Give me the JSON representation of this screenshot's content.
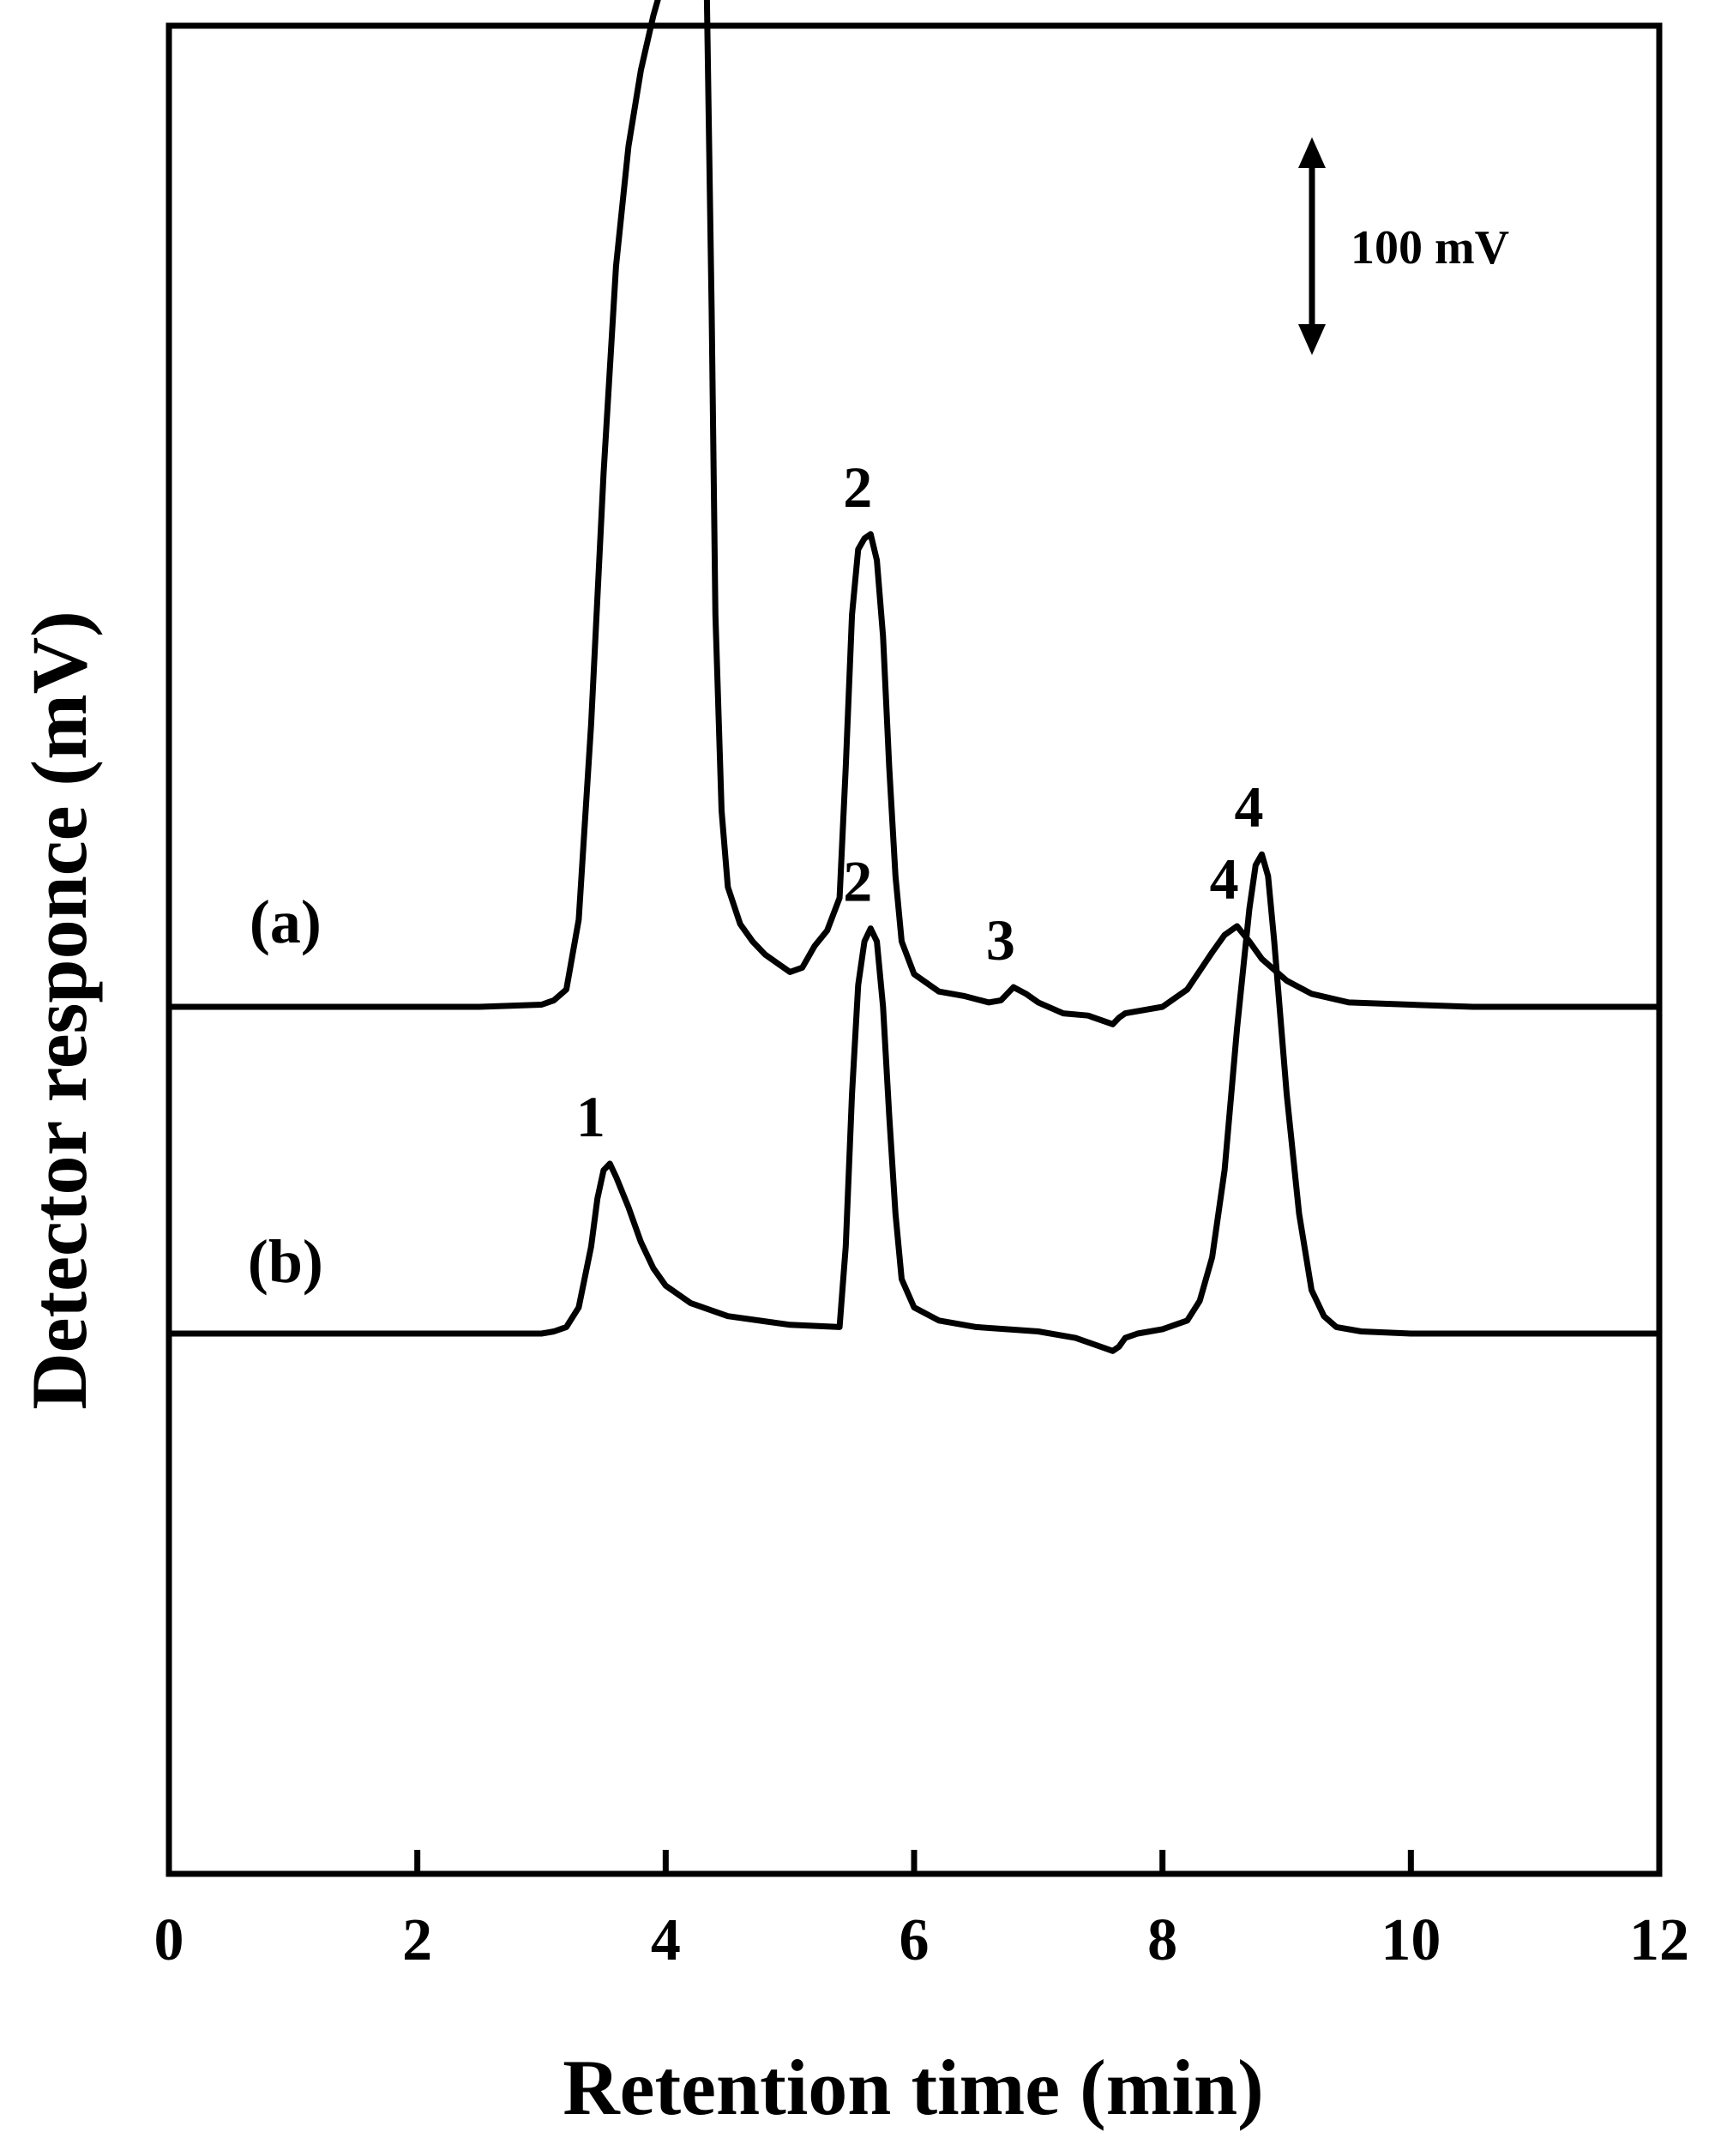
{
  "chart_data": {
    "type": "line",
    "xlabel": "Retention time (min)",
    "ylabel": "Detector responce (mV)",
    "xlim": [
      0,
      12
    ],
    "x_ticks": [
      "0",
      "2",
      "4",
      "6",
      "8",
      "10",
      "12"
    ],
    "y_ticks_shown": false,
    "grid": false,
    "scale_bar": {
      "label": "100 mV",
      "value_mV": 100
    },
    "series": [
      {
        "name": "(a)",
        "baseline_mV": 150,
        "color": "#000000",
        "peaks": [
          {
            "label": "1",
            "x": 4.3,
            "y": 680
          },
          {
            "label": "2",
            "x": 5.65,
            "y": 367
          },
          {
            "label": "3",
            "x": 6.8,
            "y": 159
          },
          {
            "label": "4",
            "x": 8.6,
            "y": 187
          }
        ],
        "x": [
          0.0,
          0.2,
          0.5,
          1.0,
          1.5,
          2.0,
          2.5,
          3.0,
          3.1,
          3.2,
          3.3,
          3.4,
          3.5,
          3.6,
          3.7,
          3.8,
          3.9,
          4.0,
          4.05,
          4.1,
          4.15,
          4.2,
          4.25,
          4.3,
          4.33,
          4.37,
          4.4,
          4.45,
          4.5,
          4.6,
          4.7,
          4.8,
          4.9,
          5.0,
          5.1,
          5.2,
          5.3,
          5.4,
          5.45,
          5.5,
          5.55,
          5.6,
          5.65,
          5.7,
          5.75,
          5.8,
          5.85,
          5.9,
          6.0,
          6.2,
          6.4,
          6.6,
          6.7,
          6.8,
          6.9,
          7.0,
          7.2,
          7.4,
          7.6,
          7.65,
          7.7,
          7.8,
          8.0,
          8.2,
          8.4,
          8.5,
          8.6,
          8.7,
          8.8,
          9.0,
          9.2,
          9.5,
          10.0,
          10.5,
          11.0,
          11.5,
          12.0
        ],
        "y": [
          150,
          150,
          150,
          150,
          150,
          150,
          150,
          151,
          153,
          158,
          190,
          280,
          395,
          490,
          545,
          580,
          605,
          625,
          630,
          640,
          643,
          652,
          658,
          680,
          620,
          470,
          330,
          240,
          205,
          188,
          180,
          174,
          170,
          166,
          168,
          178,
          185,
          200,
          260,
          330,
          360,
          365,
          367,
          355,
          320,
          260,
          210,
          180,
          165,
          157,
          155,
          152,
          153,
          159,
          156,
          152,
          147,
          146,
          142,
          145,
          147,
          148,
          150,
          158,
          175,
          183,
          187,
          180,
          172,
          162,
          156,
          152,
          151,
          150,
          150,
          150,
          150
        ]
      },
      {
        "name": "(b)",
        "baseline_mV": 0,
        "color": "#000000",
        "peaks": [
          {
            "label": "1",
            "x": 3.5,
            "y": 78
          },
          {
            "label": "2",
            "x": 5.65,
            "y": 186
          },
          {
            "label": "4",
            "x": 8.8,
            "y": 220
          }
        ],
        "x": [
          0.0,
          0.5,
          1.0,
          1.5,
          2.0,
          2.5,
          3.0,
          3.1,
          3.2,
          3.3,
          3.4,
          3.45,
          3.5,
          3.55,
          3.6,
          3.7,
          3.8,
          3.9,
          4.0,
          4.2,
          4.5,
          5.0,
          5.4,
          5.45,
          5.5,
          5.55,
          5.6,
          5.65,
          5.7,
          5.75,
          5.8,
          5.85,
          5.9,
          6.0,
          6.2,
          6.5,
          7.0,
          7.3,
          7.6,
          7.65,
          7.7,
          7.8,
          8.0,
          8.2,
          8.3,
          8.4,
          8.5,
          8.6,
          8.7,
          8.75,
          8.8,
          8.85,
          8.9,
          9.0,
          9.1,
          9.2,
          9.3,
          9.4,
          9.6,
          10.0,
          10.5,
          11.0,
          11.5,
          12.0
        ],
        "y": [
          0,
          0,
          0,
          0,
          0,
          0,
          0,
          1,
          3,
          12,
          40,
          62,
          75,
          78,
          72,
          58,
          42,
          30,
          22,
          14,
          8,
          4,
          3,
          40,
          110,
          160,
          180,
          186,
          180,
          150,
          100,
          55,
          25,
          12,
          6,
          3,
          1,
          -2,
          -8,
          -6,
          -2,
          0,
          2,
          6,
          15,
          35,
          75,
          140,
          195,
          215,
          220,
          210,
          180,
          110,
          55,
          20,
          8,
          3,
          1,
          0,
          0,
          0,
          0,
          0
        ]
      }
    ]
  }
}
